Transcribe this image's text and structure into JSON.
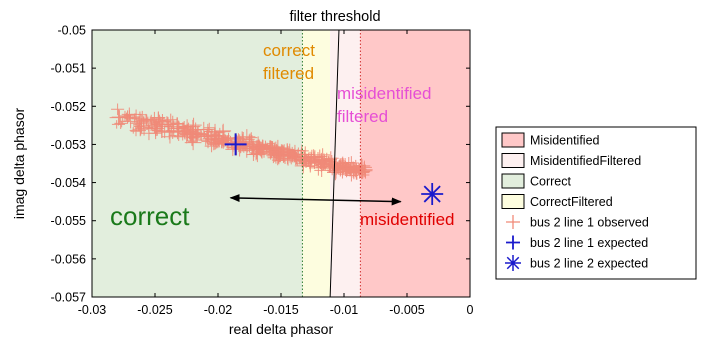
{
  "chart_data": {
    "type": "scatter",
    "title": "",
    "xlabel": "real delta phasor",
    "ylabel": "imag delta phasor",
    "xlim": [
      -0.03,
      0
    ],
    "ylim": [
      -0.057,
      -0.05
    ],
    "xticks": [
      -0.03,
      -0.025,
      -0.02,
      -0.015,
      -0.01,
      -0.005,
      0
    ],
    "xtick_labels": [
      "-0.03",
      "-0.025",
      "-0.02",
      "-0.015",
      "-0.01",
      "-0.005",
      "0"
    ],
    "yticks": [
      -0.05,
      -0.051,
      -0.052,
      -0.053,
      -0.054,
      -0.055,
      -0.056,
      -0.057
    ],
    "ytick_labels": [
      "-0.05",
      "-0.051",
      "-0.052",
      "-0.053",
      "-0.054",
      "-0.055",
      "-0.056",
      "-0.057"
    ],
    "grid": false,
    "legend_position": "right",
    "regions": [
      {
        "name": "Correct",
        "x0": -0.03,
        "x1": -0.0133,
        "color": "#e2eedd"
      },
      {
        "name": "CorrectFiltered",
        "x0": -0.0133,
        "x1": -0.0111,
        "color": "#fdfddf"
      },
      {
        "name": "MisidentifiedFiltered",
        "x0": -0.0111,
        "x1": -0.0087,
        "color": "#fdf0f0"
      },
      {
        "name": "Misidentified",
        "x0": -0.0087,
        "x1": 0,
        "color": "#ffc8c8"
      }
    ],
    "threshold_lines": [
      {
        "x": -0.0133,
        "style": "dotted",
        "color": "#2e7d32"
      },
      {
        "x_bottom": -0.0111,
        "x_top": -0.0104,
        "style": "solid",
        "color": "#000000",
        "label": "filter threshold"
      },
      {
        "x": -0.0087,
        "style": "dotted",
        "color": "#d32f2f"
      }
    ],
    "series": [
      {
        "name": "bus 2 line 1 observed",
        "marker": "+",
        "color": "#f08a78",
        "cloud": {
          "x_start": -0.0278,
          "y_start": -0.0523,
          "x_end": -0.0085,
          "y_end": -0.0537,
          "spread": 0.0003
        }
      },
      {
        "name": "bus 2 line 1 expected",
        "marker": "+",
        "color": "#1a1acc",
        "points": [
          {
            "x": -0.0186,
            "y": -0.053
          }
        ]
      },
      {
        "name": "bus 2 line 2 expected",
        "marker": "*",
        "color": "#1a1acc",
        "points": [
          {
            "x": -0.003,
            "y": -0.0543
          }
        ]
      }
    ],
    "legend": [
      {
        "label": "Misidentified",
        "kind": "patch",
        "color": "#ffc8c8"
      },
      {
        "label": "MisidentifiedFiltered",
        "kind": "patch",
        "color": "#fdf0f0"
      },
      {
        "label": "Correct",
        "kind": "patch",
        "color": "#e2eedd"
      },
      {
        "label": "CorrectFiltered",
        "kind": "patch",
        "color": "#fdfddf"
      },
      {
        "label": "bus 2 line 1 observed",
        "kind": "plus",
        "color": "#f08a78"
      },
      {
        "label": "bus 2 line 1 expected",
        "kind": "plus",
        "color": "#1a1acc"
      },
      {
        "label": "bus 2 line 2 expected",
        "kind": "star",
        "color": "#1a1acc"
      }
    ],
    "annotations": [
      {
        "text": "filter threshold",
        "x": -0.0104,
        "y": -0.05,
        "color": "#000000"
      },
      {
        "text": "correct",
        "x": -0.0155,
        "y": -0.0509,
        "color": "#e08a00",
        "lines": [
          "correct",
          "filtered"
        ]
      },
      {
        "text": "misidentified",
        "x": -0.01,
        "y": -0.0521,
        "color": "#e64fd5",
        "lines": [
          "misidentified",
          "filtered"
        ]
      },
      {
        "text": "correct",
        "x": -0.028,
        "y": -0.0552,
        "color": "#1a7a1a"
      },
      {
        "text": "misidentified",
        "x": -0.0085,
        "y": -0.0553,
        "color": "#e00000"
      }
    ],
    "arrow": {
      "x0": -0.019,
      "y0": -0.0544,
      "x1": -0.0055,
      "y1": -0.0545,
      "two_headed": true
    }
  }
}
